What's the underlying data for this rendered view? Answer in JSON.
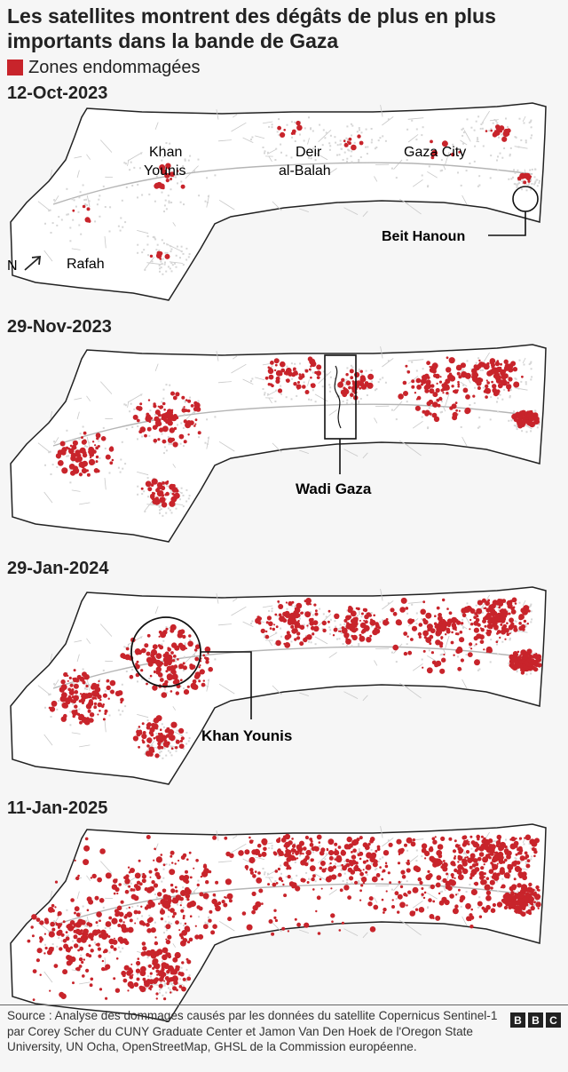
{
  "title": "Les satellites montrent des dégâts de plus en plus importants dans la bande de Gaza",
  "legend": {
    "label": "Zones endommagées",
    "color": "#c8242b"
  },
  "colors": {
    "damage": "#c8242b",
    "land": "#ffffff",
    "roads": "#c9c9c9",
    "outline": "#222222"
  },
  "north_label": "N",
  "panels": [
    {
      "date": "12-Oct-2023",
      "damage_level": 0.05,
      "labels": {
        "rafah": "Rafah",
        "khan_younis_1": "Khan",
        "khan_younis_2": "Younis",
        "deir_1": "Deir",
        "deir_2": "al-Balah",
        "gaza_city": "Gaza City",
        "beit_hanoun": "Beit Hanoun"
      }
    },
    {
      "date": "29-Nov-2023",
      "damage_level": 0.35,
      "callout": "Wadi Gaza"
    },
    {
      "date": "29-Jan-2024",
      "damage_level": 0.55,
      "callout": "Khan Younis"
    },
    {
      "date": "11-Jan-2025",
      "damage_level": 0.85
    }
  ],
  "source": "Source : Analyse des dommages causés par les données du satellite Copernicus Sentinel-1 par Corey Scher du CUNY Graduate Center et Jamon Van Den Hoek de l'Oregon State University, UN Ocha, OpenStreetMap, GHSL de la Commission européenne.",
  "brand": [
    "B",
    "B",
    "C"
  ]
}
